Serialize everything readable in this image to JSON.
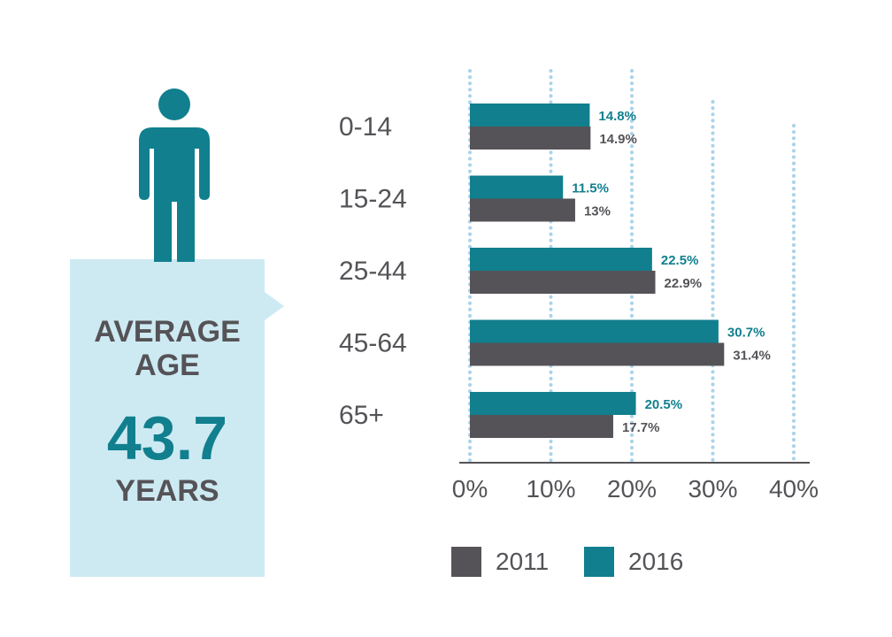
{
  "info_panel": {
    "label": "AVERAGE AGE",
    "value": "43.7",
    "unit": "YEARS",
    "icon": "person-icon"
  },
  "colors": {
    "2016": "#117f8e",
    "2011": "#555357",
    "panel": "#cdeaf3",
    "grid": "#a9d3ea"
  },
  "chart_data": {
    "type": "bar",
    "orientation": "horizontal",
    "categories": [
      "0-14",
      "15-24",
      "25-44",
      "45-64",
      "65+"
    ],
    "series": [
      {
        "name": "2016",
        "values": [
          14.8,
          11.5,
          22.5,
          30.7,
          20.5
        ],
        "labels": [
          "14.8%",
          "11.5%",
          "22.5%",
          "30.7%",
          "20.5%"
        ]
      },
      {
        "name": "2011",
        "values": [
          14.9,
          13,
          22.9,
          31.4,
          17.7
        ],
        "labels": [
          "14.9%",
          "13%",
          "22.9%",
          "31.4%",
          "17.7%"
        ]
      }
    ],
    "x_ticks": [
      "0%",
      "10%",
      "20%",
      "30%",
      "40%"
    ],
    "xlim": [
      0,
      40
    ],
    "xlabel": "",
    "ylabel": "",
    "grid": true,
    "legend_position": "bottom"
  },
  "legend": {
    "items": [
      {
        "label": "2011"
      },
      {
        "label": "2016"
      }
    ]
  }
}
